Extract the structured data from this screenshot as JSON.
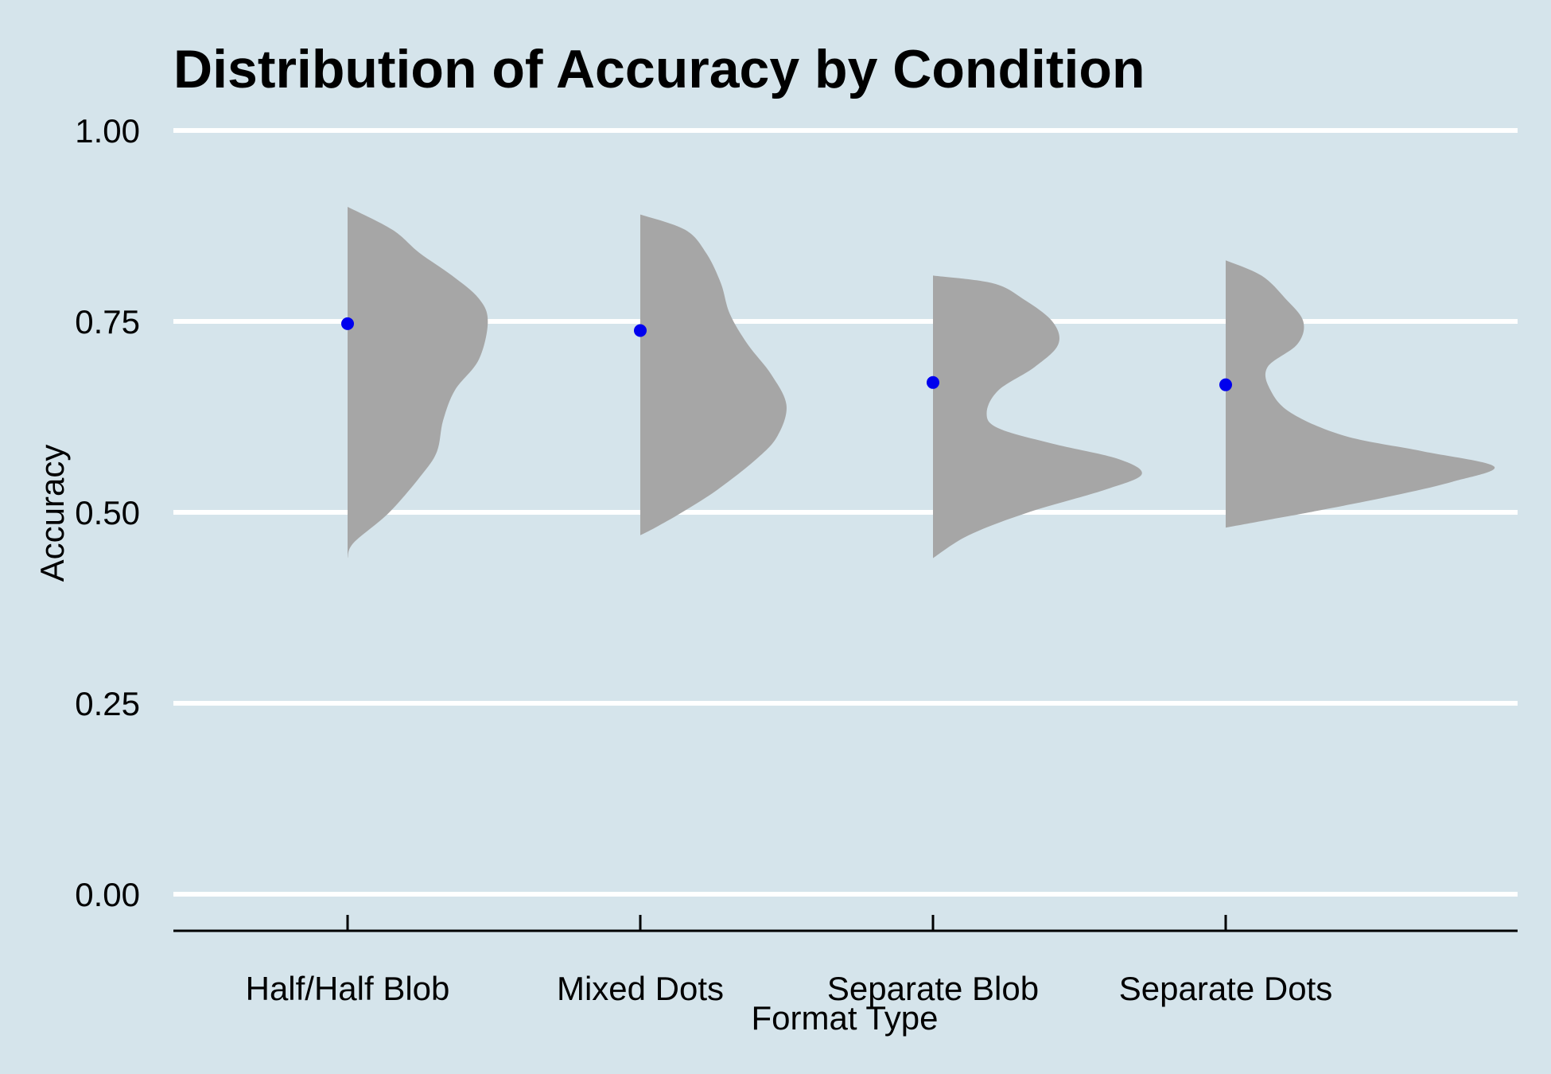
{
  "chart_data": {
    "type": "violin",
    "title": "Distribution of Accuracy by Condition",
    "xlabel": "Format Type",
    "ylabel": "Accuracy",
    "ylim": [
      -0.05,
      1.0
    ],
    "yticks": [
      "0.00",
      "0.25",
      "0.50",
      "0.75",
      "1.00"
    ],
    "ytick_values": [
      0,
      0.25,
      0.5,
      0.75,
      1.0
    ],
    "grid": "horizontal",
    "colors": {
      "background": "#d5e4eb",
      "violin": "#a6a6a6",
      "point": "#0000ee",
      "grid": "#ffffff"
    },
    "categories": [
      "Half/Half Blob",
      "Mixed Dots",
      "Separate Blob",
      "Separate Dots"
    ],
    "means": [
      0.747,
      0.738,
      0.67,
      0.667
    ],
    "violins": [
      {
        "name": "Half/Half Blob",
        "profile": [
          [
            0.44,
            0.0
          ],
          [
            0.46,
            0.02
          ],
          [
            0.5,
            0.14
          ],
          [
            0.55,
            0.25
          ],
          [
            0.58,
            0.3
          ],
          [
            0.62,
            0.32
          ],
          [
            0.66,
            0.36
          ],
          [
            0.7,
            0.44
          ],
          [
            0.75,
            0.47
          ],
          [
            0.78,
            0.44
          ],
          [
            0.81,
            0.35
          ],
          [
            0.84,
            0.24
          ],
          [
            0.87,
            0.15
          ],
          [
            0.9,
            0.0
          ]
        ]
      },
      {
        "name": "Mixed Dots",
        "profile": [
          [
            0.47,
            0.0
          ],
          [
            0.48,
            0.05
          ],
          [
            0.5,
            0.14
          ],
          [
            0.53,
            0.26
          ],
          [
            0.57,
            0.39
          ],
          [
            0.6,
            0.46
          ],
          [
            0.64,
            0.49
          ],
          [
            0.68,
            0.44
          ],
          [
            0.72,
            0.36
          ],
          [
            0.76,
            0.3
          ],
          [
            0.8,
            0.27
          ],
          [
            0.84,
            0.22
          ],
          [
            0.87,
            0.15
          ],
          [
            0.89,
            0.0
          ]
        ]
      },
      {
        "name": "Separate Blob",
        "profile": [
          [
            0.44,
            0.0
          ],
          [
            0.47,
            0.12
          ],
          [
            0.5,
            0.32
          ],
          [
            0.53,
            0.58
          ],
          [
            0.55,
            0.7
          ],
          [
            0.57,
            0.62
          ],
          [
            0.59,
            0.4
          ],
          [
            0.61,
            0.22
          ],
          [
            0.63,
            0.18
          ],
          [
            0.66,
            0.22
          ],
          [
            0.69,
            0.34
          ],
          [
            0.72,
            0.42
          ],
          [
            0.75,
            0.4
          ],
          [
            0.78,
            0.3
          ],
          [
            0.8,
            0.2
          ],
          [
            0.81,
            0.0
          ]
        ]
      },
      {
        "name": "Separate Dots",
        "profile": [
          [
            0.48,
            0.0
          ],
          [
            0.49,
            0.14
          ],
          [
            0.5,
            0.28
          ],
          [
            0.52,
            0.54
          ],
          [
            0.54,
            0.76
          ],
          [
            0.56,
            0.9
          ],
          [
            0.58,
            0.66
          ],
          [
            0.6,
            0.4
          ],
          [
            0.63,
            0.22
          ],
          [
            0.66,
            0.15
          ],
          [
            0.69,
            0.14
          ],
          [
            0.72,
            0.24
          ],
          [
            0.75,
            0.26
          ],
          [
            0.78,
            0.2
          ],
          [
            0.81,
            0.12
          ],
          [
            0.83,
            0.0
          ]
        ]
      }
    ]
  }
}
